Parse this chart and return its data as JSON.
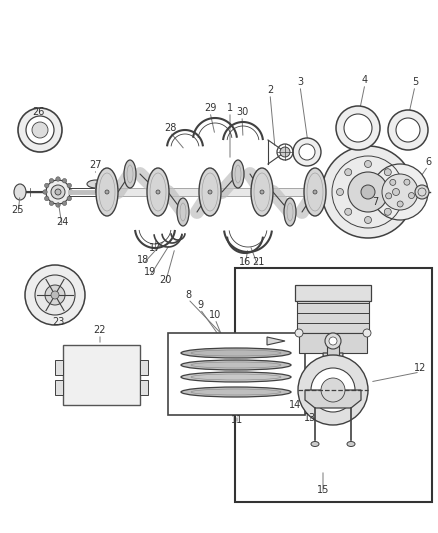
{
  "bg_color": "#ffffff",
  "line_color": "#404040",
  "label_color": "#333333",
  "label_fontsize": 7.0,
  "fig_width": 4.38,
  "fig_height": 5.33,
  "dpi": 100
}
